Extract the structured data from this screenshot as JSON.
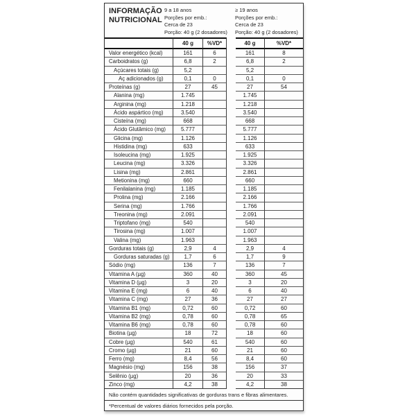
{
  "title": {
    "line1": "INFORMAÇÃO",
    "line2": "NUTRICIONAL"
  },
  "groups": [
    {
      "age": "9 a 18 anos",
      "lines": [
        "Porções por emb.:",
        "Cerca de 23",
        "Porção: 40 g (2 dosadores)"
      ],
      "col_qty": "40 g",
      "col_vd": "%VD*"
    },
    {
      "age": "≥ 19 anos",
      "lines": [
        "Porções por emb.:",
        "Cerca de 23",
        "Porção: 40 g (2 dosadores)"
      ],
      "col_qty": "40 g",
      "col_vd": "%VD*"
    }
  ],
  "rows": [
    {
      "label": "Valor energético (kcal)",
      "indent": 0,
      "q1": "161",
      "v1": "6",
      "q2": "161",
      "v2": "8"
    },
    {
      "label": "Carboidratos (g)",
      "indent": 0,
      "q1": "6,8",
      "v1": "2",
      "q2": "6,8",
      "v2": "2"
    },
    {
      "label": "Açúcares totais (g)",
      "indent": 1,
      "q1": "5,2",
      "v1": "",
      "q2": "5,2",
      "v2": ""
    },
    {
      "label": "Aç adicionados (g)",
      "indent": 2,
      "q1": "0,1",
      "v1": "0",
      "q2": "0,1",
      "v2": "0"
    },
    {
      "label": "Proteínas (g)",
      "indent": 0,
      "q1": "27",
      "v1": "45",
      "q2": "27",
      "v2": "54"
    },
    {
      "label": "Alanina (mg)",
      "indent": 1,
      "q1": "1.745",
      "v1": "",
      "q2": "1.745",
      "v2": ""
    },
    {
      "label": "Arginina (mg)",
      "indent": 1,
      "q1": "1.218",
      "v1": "",
      "q2": "1.218",
      "v2": ""
    },
    {
      "label": "Ácido aspártico (mg)",
      "indent": 1,
      "q1": "3.540",
      "v1": "",
      "q2": "3.540",
      "v2": ""
    },
    {
      "label": "Cisteína (mg)",
      "indent": 1,
      "q1": "668",
      "v1": "",
      "q2": "668",
      "v2": ""
    },
    {
      "label": "Ácido Glutâmico (mg)",
      "indent": 1,
      "q1": "5.777",
      "v1": "",
      "q2": "5.777",
      "v2": ""
    },
    {
      "label": "Glicina (mg)",
      "indent": 1,
      "q1": "1.126",
      "v1": "",
      "q2": "1.126",
      "v2": ""
    },
    {
      "label": "Histidina (mg)",
      "indent": 1,
      "q1": "633",
      "v1": "",
      "q2": "633",
      "v2": ""
    },
    {
      "label": "Isoleucina (mg)",
      "indent": 1,
      "q1": "1.925",
      "v1": "",
      "q2": "1.925",
      "v2": ""
    },
    {
      "label": "Leucina (mg)",
      "indent": 1,
      "q1": "3.326",
      "v1": "",
      "q2": "3.326",
      "v2": ""
    },
    {
      "label": "Lisina (mg)",
      "indent": 1,
      "q1": "2.861",
      "v1": "",
      "q2": "2.861",
      "v2": ""
    },
    {
      "label": "Metionina (mg)",
      "indent": 1,
      "q1": "660",
      "v1": "",
      "q2": "660",
      "v2": ""
    },
    {
      "label": "Fenilalanina (mg)",
      "indent": 1,
      "q1": "1.185",
      "v1": "",
      "q2": "1.185",
      "v2": ""
    },
    {
      "label": "Prolina (mg)",
      "indent": 1,
      "q1": "2.166",
      "v1": "",
      "q2": "2.166",
      "v2": ""
    },
    {
      "label": "Serina (mg)",
      "indent": 1,
      "q1": "1.766",
      "v1": "",
      "q2": "1.766",
      "v2": ""
    },
    {
      "label": "Treonina (mg)",
      "indent": 1,
      "q1": "2.091",
      "v1": "",
      "q2": "2.091",
      "v2": ""
    },
    {
      "label": "Triptofano (mg)",
      "indent": 1,
      "q1": "540",
      "v1": "",
      "q2": "540",
      "v2": ""
    },
    {
      "label": "Tirosina (mg)",
      "indent": 1,
      "q1": "1.007",
      "v1": "",
      "q2": "1.007",
      "v2": ""
    },
    {
      "label": "Valina (mg)",
      "indent": 1,
      "q1": "1.963",
      "v1": "",
      "q2": "1.963",
      "v2": ""
    },
    {
      "label": "Gorduras totais (g)",
      "indent": 0,
      "q1": "2,9",
      "v1": "4",
      "q2": "2,9",
      "v2": "4"
    },
    {
      "label": "Gorduras saturadas (g)",
      "indent": 1,
      "q1": "1,7",
      "v1": "6",
      "q2": "1,7",
      "v2": "9"
    },
    {
      "label": "Sódio (mg)",
      "indent": 0,
      "q1": "136",
      "v1": "7",
      "q2": "136",
      "v2": "7"
    },
    {
      "label": "Vitamina A (µg)",
      "indent": 0,
      "q1": "360",
      "v1": "40",
      "q2": "360",
      "v2": "45"
    },
    {
      "label": "Vitamina D (µg)",
      "indent": 0,
      "q1": "3",
      "v1": "20",
      "q2": "3",
      "v2": "20"
    },
    {
      "label": "Vitamina E (mg)",
      "indent": 0,
      "q1": "6",
      "v1": "40",
      "q2": "6",
      "v2": "40"
    },
    {
      "label": "Vitamina C (mg)",
      "indent": 0,
      "q1": "27",
      "v1": "36",
      "q2": "27",
      "v2": "27"
    },
    {
      "label": "Vitamina B1 (mg)",
      "indent": 0,
      "q1": "0,72",
      "v1": "60",
      "q2": "0,72",
      "v2": "60"
    },
    {
      "label": "Vitamina B2 (mg)",
      "indent": 0,
      "q1": "0,78",
      "v1": "60",
      "q2": "0,78",
      "v2": "65"
    },
    {
      "label": "Vitamina B6 (mg)",
      "indent": 0,
      "q1": "0,78",
      "v1": "60",
      "q2": "0,78",
      "v2": "60"
    },
    {
      "label": "Biotina (µg)",
      "indent": 0,
      "q1": "18",
      "v1": "72",
      "q2": "18",
      "v2": "60"
    },
    {
      "label": "Cobre (µg)",
      "indent": 0,
      "q1": "540",
      "v1": "61",
      "q2": "540",
      "v2": "60"
    },
    {
      "label": "Cromo (µg)",
      "indent": 0,
      "q1": "21",
      "v1": "60",
      "q2": "21",
      "v2": "60"
    },
    {
      "label": "Ferro (mg)",
      "indent": 0,
      "q1": "8,4",
      "v1": "56",
      "q2": "8,4",
      "v2": "60"
    },
    {
      "label": "Magnésio (mg)",
      "indent": 0,
      "q1": "156",
      "v1": "38",
      "q2": "156",
      "v2": "37"
    },
    {
      "label": "Selênio (µg)",
      "indent": 0,
      "q1": "20",
      "v1": "36",
      "q2": "20",
      "v2": "33"
    },
    {
      "label": "Zinco (mg)",
      "indent": 0,
      "q1": "4,2",
      "v1": "38",
      "q2": "4,2",
      "v2": "38"
    }
  ],
  "footnotes": [
    "Não contém quantidades significativas de gorduras trans e fibras alimentares.",
    "*Percentual de valores diários fornecidos pela porção."
  ],
  "colors": {
    "text": "#1e1e1e",
    "border": "#333333",
    "background": "#ffffff"
  }
}
